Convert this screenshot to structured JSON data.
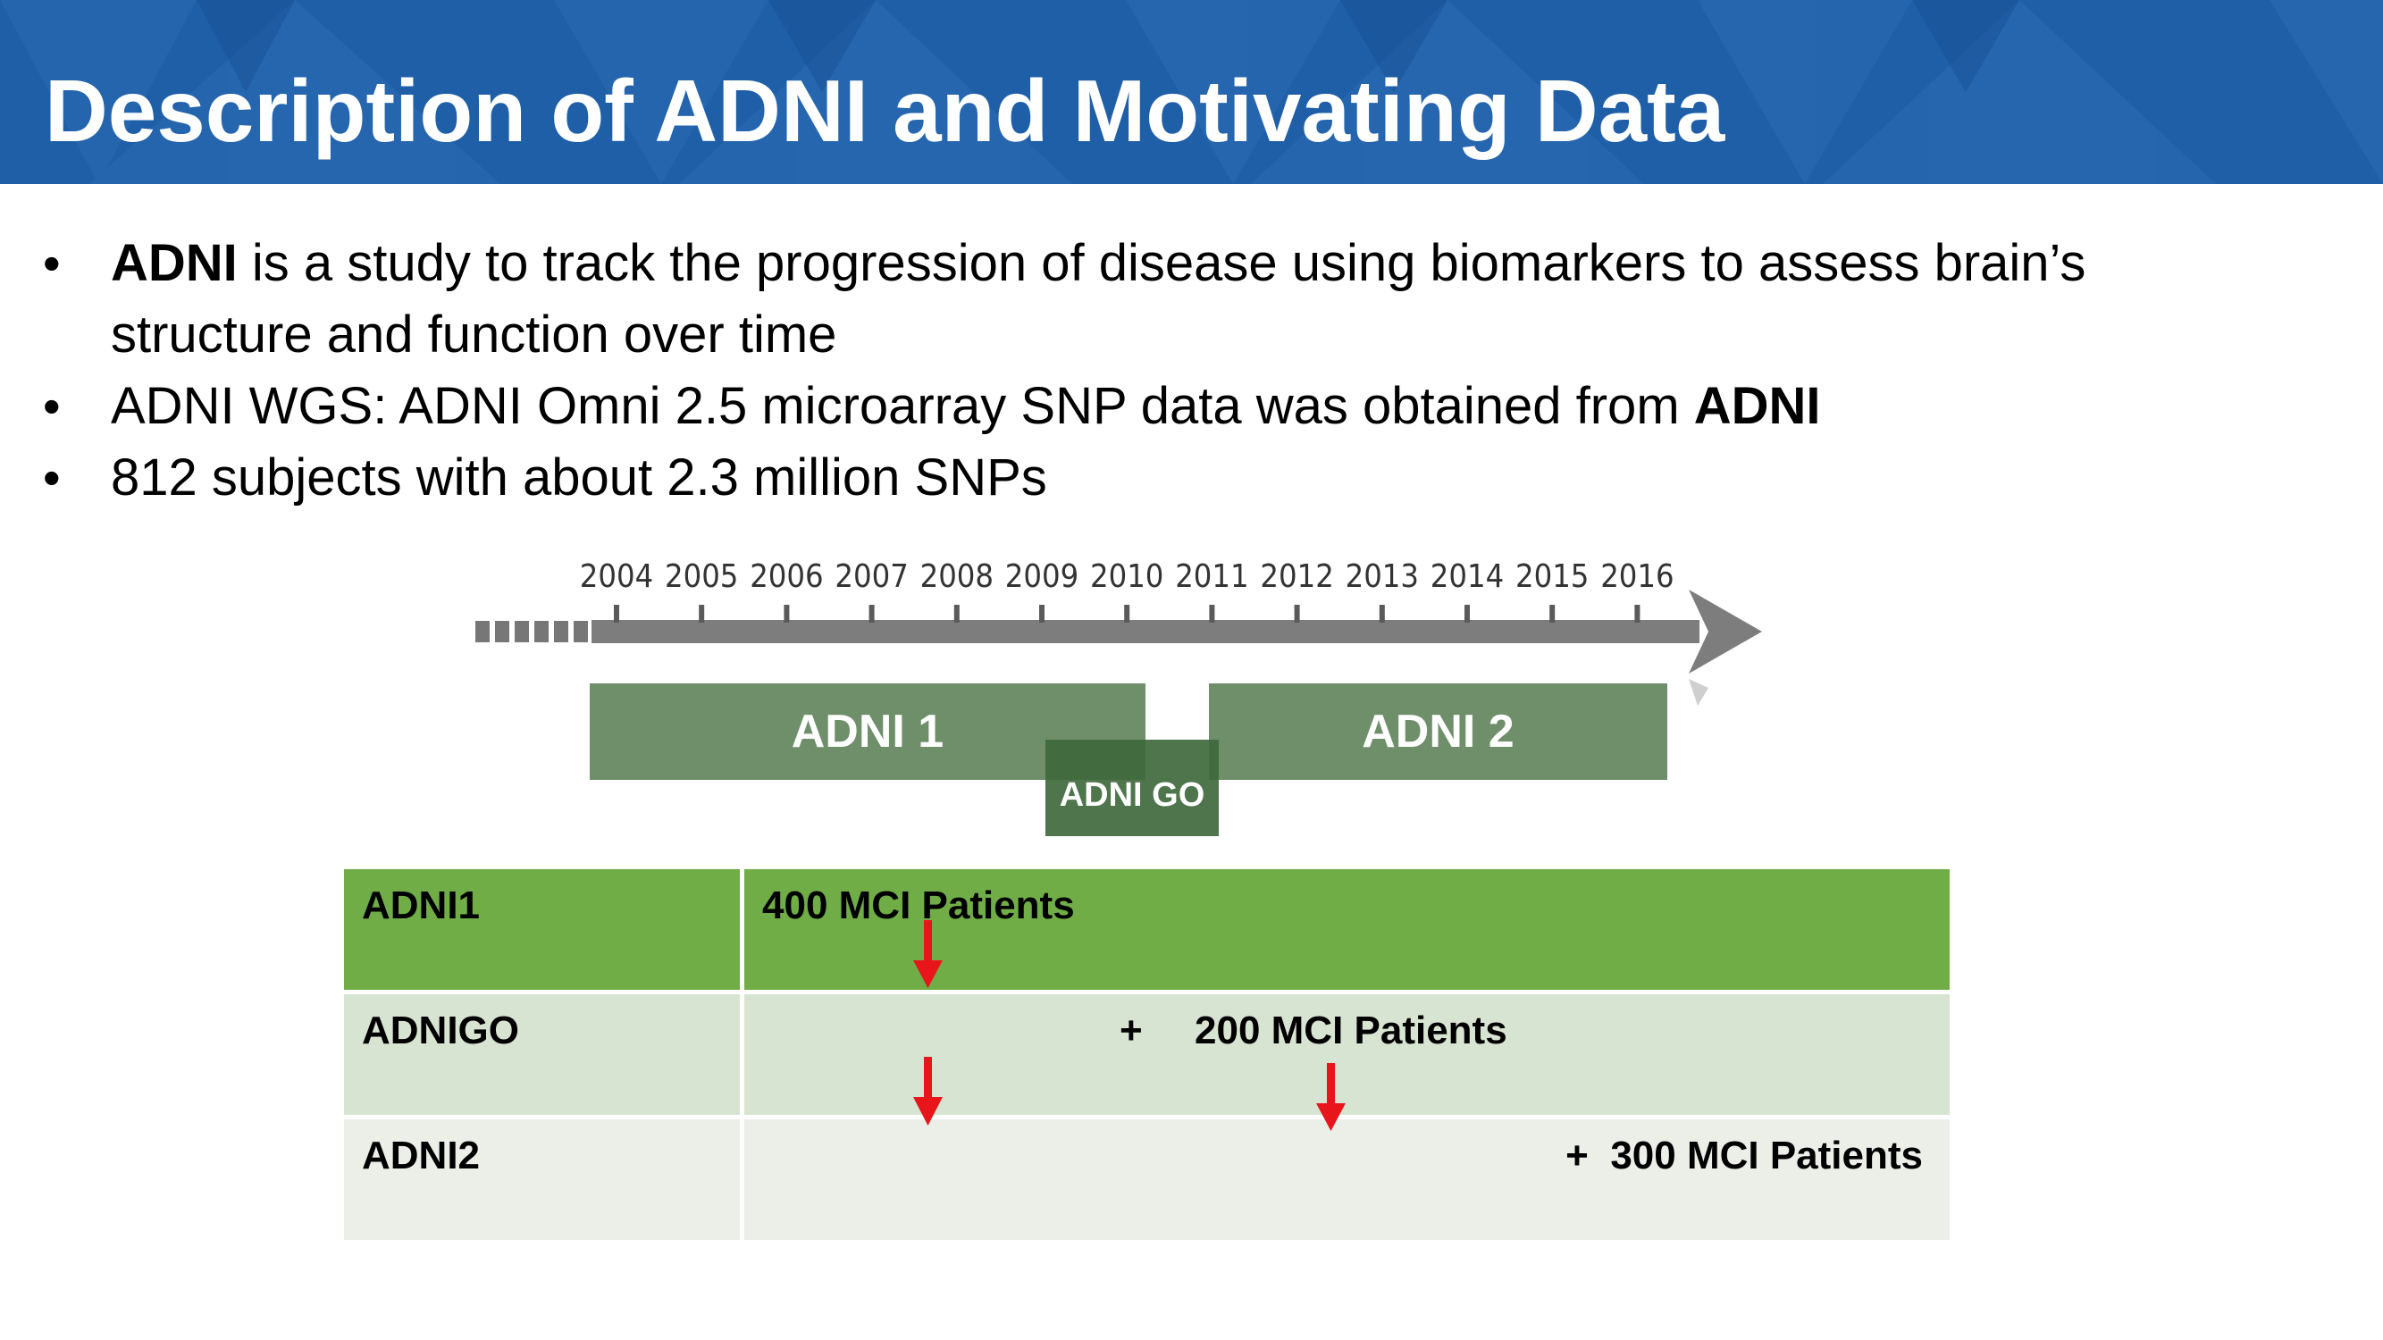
{
  "title": "Description of ADNI and Motivating Data",
  "bullets": {
    "b1_bold": "ADNI",
    "b1_rest": " is a study to track the progression of disease using biomarkers to assess brain’s structure and function over time",
    "b2_text": "ADNI WGS: ADNI Omni 2.5 microarray SNP data was obtained from ",
    "b2_bold": "ADNI",
    "b3_text": "812 subjects with about 2.3 million SNPs"
  },
  "timeline": {
    "years": [
      "2004",
      "2005",
      "2006",
      "2007",
      "2008",
      "2009",
      "2010",
      "2011",
      "2012",
      "2013",
      "2014",
      "2015",
      "2016"
    ],
    "phases": {
      "adni1": "ADNI 1",
      "adni2": "ADNI 2",
      "adnigo": "ADNI GO"
    }
  },
  "table": {
    "rows": [
      {
        "name": "ADNI1",
        "plus": "",
        "value": "400 MCI Patients"
      },
      {
        "name": "ADNIGO",
        "plus": "+",
        "value": "200 MCI Patients"
      },
      {
        "name": "ADNI2",
        "plus": "+",
        "value": "300 MCI Patients"
      }
    ]
  },
  "colors": {
    "banner": "#1f5fa8",
    "phase": "#6e8f6a",
    "row1": "#70ad47",
    "row2": "#d8e4d2",
    "row3": "#ebefe8",
    "arrow": "#e8151b"
  }
}
